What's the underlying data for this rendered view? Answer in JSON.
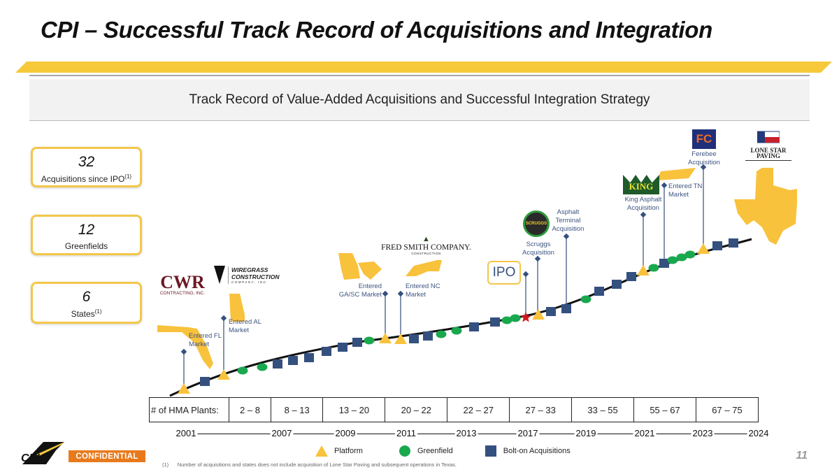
{
  "title": "CPI – Successful Track Record of Acquisitions and Integration",
  "subtitle": "Track Record of Value-Added Acquisitions and Successful Integration Strategy",
  "stats": [
    {
      "value": "32",
      "label": "Acquisitions since IPO",
      "note": "(1)"
    },
    {
      "value": "12",
      "label": "Greenfields",
      "note": ""
    },
    {
      "value": "6",
      "label": "States",
      "note": "(1)"
    }
  ],
  "callouts": {
    "fl": "Entered FL Market",
    "al": "Entered AL Market",
    "gasc": "Entered GA/SC Market",
    "nc": "Entered NC Market",
    "ipo": "IPO",
    "scruggs": "Scruggs Acquisition",
    "terminal": "Asphalt Terminal Acquisition",
    "king": "King Asphalt Acquisition",
    "tn": "Entered TN Market",
    "ferebee": "Ferebee Acquisition"
  },
  "logos": {
    "cwr": "CWR",
    "cwr_sub": "CONTRACTING, INC.",
    "wiregrass": "WIREGRASS CONSTRUCTION",
    "wiregrass_sub": "COMPANY, INC.",
    "fredsmith": "FRED SMITH COMPANY.",
    "fredsmith_sub": "CONSTRUCTION",
    "scruggs": "SCRUGGS",
    "king": "KING",
    "fc": "FC",
    "lonestar": "LONE STAR PAVING"
  },
  "table": {
    "header": "# of HMA Plants:",
    "ranges": [
      "2 – 8",
      "8 – 13",
      "13 – 20",
      "20 – 22",
      "22 – 27",
      "27 – 33",
      "33 – 55",
      "55 – 67",
      "67 – 75"
    ]
  },
  "years": [
    "2001",
    "2007",
    "2009",
    "2011",
    "2013",
    "2017",
    "2019",
    "2021",
    "2023",
    "2024"
  ],
  "legend": {
    "platform": "Platform",
    "greenfield": "Greenfield",
    "bolton": "Bolt-on Acquisitions"
  },
  "colors": {
    "platform": "#f9c23c",
    "greenfield": "#1aa84f",
    "bolton": "#34507f",
    "ipo_star": "#d0191d",
    "accent": "#f3c74a",
    "confidential": "#e97a1c"
  },
  "footer": {
    "confidential": "CONFIDENTIAL",
    "page": "11",
    "note_num": "(1)",
    "note": "Number of acquisitions and states does not include acquisition of Lone Star Paving and subsequent operations in Texas.",
    "logo": "CPI"
  }
}
